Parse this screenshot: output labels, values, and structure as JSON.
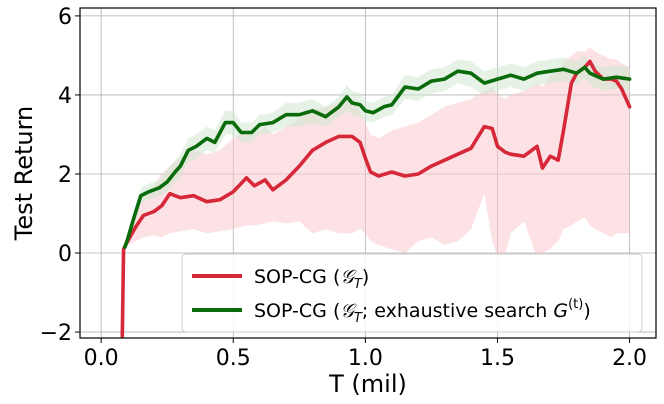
{
  "chart_data": {
    "type": "line",
    "xlabel": "T (mil)",
    "ylabel": "Test Return",
    "xlim": [
      -0.08,
      2.1
    ],
    "ylim": [
      -2.15,
      6.2
    ],
    "xticks": [
      0.0,
      0.5,
      1.0,
      1.5,
      2.0
    ],
    "xtick_labels": [
      "0.0",
      "0.5",
      "1.0",
      "1.5",
      "2.0"
    ],
    "yticks": [
      -2,
      0,
      2,
      4,
      6
    ],
    "ytick_labels": [
      "−2",
      "0",
      "2",
      "4",
      "6"
    ],
    "grid": true,
    "legend_position": "bottom-right",
    "series": [
      {
        "name": "SOP-CG (𝒢ᵀ)",
        "legend_parts": {
          "prefix": "SOP-CG (",
          "calG": "𝒢",
          "sub": "T",
          "suffix": ")"
        },
        "color": "#d62839",
        "band_color": "#f9c6cb",
        "x": [
          0.08,
          0.085,
          0.1,
          0.13,
          0.16,
          0.2,
          0.23,
          0.26,
          0.3,
          0.35,
          0.4,
          0.45,
          0.5,
          0.55,
          0.58,
          0.62,
          0.65,
          0.7,
          0.75,
          0.8,
          0.85,
          0.9,
          0.95,
          0.98,
          1.0,
          1.02,
          1.05,
          1.1,
          1.15,
          1.2,
          1.25,
          1.3,
          1.35,
          1.4,
          1.45,
          1.48,
          1.5,
          1.53,
          1.55,
          1.6,
          1.65,
          1.67,
          1.7,
          1.73,
          1.75,
          1.78,
          1.8,
          1.83,
          1.85,
          1.87,
          1.9,
          1.93,
          1.95,
          1.97,
          2.0
        ],
        "y": [
          -2.1,
          0.1,
          0.3,
          0.65,
          0.95,
          1.05,
          1.2,
          1.5,
          1.4,
          1.45,
          1.3,
          1.35,
          1.55,
          1.9,
          1.7,
          1.85,
          1.6,
          1.85,
          2.2,
          2.6,
          2.8,
          2.95,
          2.95,
          2.8,
          2.4,
          2.05,
          1.95,
          2.05,
          1.95,
          2.0,
          2.2,
          2.35,
          2.5,
          2.65,
          3.2,
          3.15,
          2.7,
          2.55,
          2.5,
          2.45,
          2.7,
          2.15,
          2.45,
          2.35,
          3.1,
          4.3,
          4.55,
          4.7,
          4.85,
          4.6,
          4.4,
          4.4,
          4.35,
          4.15,
          3.7
        ],
        "band_low": [
          -2.1,
          0.0,
          0.2,
          0.3,
          0.4,
          0.45,
          0.4,
          0.5,
          0.55,
          0.6,
          0.5,
          0.55,
          0.6,
          0.7,
          0.7,
          0.75,
          0.8,
          0.75,
          0.8,
          0.5,
          0.6,
          0.5,
          0.5,
          0.6,
          0.5,
          0.3,
          0.2,
          0.1,
          0.0,
          0.3,
          0.4,
          0.2,
          0.3,
          0.6,
          1.5,
          0.3,
          -0.1,
          0.0,
          0.5,
          0.8,
          -0.1,
          0.0,
          0.1,
          0.3,
          0.6,
          0.7,
          0.8,
          0.9,
          0.7,
          0.6,
          0.5,
          0.4,
          0.5,
          0.5,
          0.5
        ],
        "band_high": [
          -2.1,
          0.2,
          0.5,
          1.0,
          1.4,
          1.7,
          2.0,
          2.2,
          2.4,
          2.6,
          2.5,
          2.6,
          2.9,
          3.1,
          3.0,
          3.2,
          3.0,
          3.2,
          3.4,
          3.6,
          3.7,
          3.8,
          3.9,
          3.6,
          3.3,
          3.0,
          2.9,
          3.1,
          3.2,
          3.3,
          3.5,
          3.7,
          3.8,
          3.9,
          4.1,
          4.2,
          4.0,
          3.9,
          4.0,
          4.1,
          4.3,
          4.2,
          4.5,
          4.6,
          4.8,
          5.0,
          5.1,
          5.1,
          5.2,
          5.1,
          5.0,
          4.9,
          4.9,
          4.8,
          4.7
        ]
      },
      {
        "name": "SOP-CG (𝒢ᵀ; exhaustive search G⁽ᵗ⁾)",
        "legend_parts": {
          "prefix": "SOP-CG (",
          "calG": "𝒢",
          "sub": "T",
          "mid": "; exhaustive search ",
          "G": "G",
          "sup": "(t)",
          "suffix": ")"
        },
        "color": "#0a6b0a",
        "band_color": "#cfe8cf",
        "x": [
          0.09,
          0.1,
          0.12,
          0.15,
          0.18,
          0.2,
          0.22,
          0.25,
          0.28,
          0.3,
          0.33,
          0.36,
          0.4,
          0.43,
          0.47,
          0.5,
          0.53,
          0.57,
          0.6,
          0.65,
          0.7,
          0.75,
          0.8,
          0.85,
          0.9,
          0.93,
          0.95,
          0.98,
          1.0,
          1.03,
          1.07,
          1.1,
          1.15,
          1.2,
          1.25,
          1.3,
          1.35,
          1.4,
          1.45,
          1.5,
          1.55,
          1.6,
          1.65,
          1.7,
          1.75,
          1.8,
          1.83,
          1.85,
          1.9,
          1.95,
          2.0
        ],
        "y": [
          0.15,
          0.35,
          0.8,
          1.45,
          1.55,
          1.6,
          1.65,
          1.8,
          2.05,
          2.2,
          2.6,
          2.7,
          2.9,
          2.8,
          3.3,
          3.3,
          3.05,
          3.05,
          3.25,
          3.3,
          3.5,
          3.5,
          3.6,
          3.45,
          3.7,
          3.95,
          3.8,
          3.75,
          3.6,
          3.55,
          3.7,
          3.75,
          4.2,
          4.15,
          4.35,
          4.4,
          4.6,
          4.55,
          4.3,
          4.4,
          4.5,
          4.4,
          4.55,
          4.6,
          4.65,
          4.55,
          4.7,
          4.55,
          4.4,
          4.45,
          4.4
        ],
        "band_low": [
          0.1,
          0.25,
          0.6,
          1.25,
          1.35,
          1.4,
          1.45,
          1.55,
          1.8,
          1.9,
          2.3,
          2.4,
          2.6,
          2.55,
          3.0,
          3.0,
          2.8,
          2.8,
          3.0,
          3.05,
          3.2,
          3.2,
          3.3,
          3.2,
          3.45,
          3.6,
          3.5,
          3.45,
          3.35,
          3.3,
          3.45,
          3.5,
          3.9,
          3.85,
          4.05,
          4.1,
          4.3,
          4.2,
          4.0,
          4.1,
          4.2,
          4.1,
          4.25,
          4.3,
          4.35,
          4.25,
          4.4,
          4.25,
          4.1,
          4.15,
          4.1
        ],
        "band_high": [
          0.2,
          0.45,
          1.0,
          1.65,
          1.75,
          1.8,
          1.85,
          2.1,
          2.35,
          2.5,
          2.9,
          3.0,
          3.2,
          3.1,
          3.6,
          3.6,
          3.3,
          3.3,
          3.5,
          3.55,
          3.8,
          3.8,
          3.9,
          3.7,
          3.95,
          4.25,
          4.1,
          4.05,
          3.85,
          3.8,
          3.95,
          4.0,
          4.5,
          4.45,
          4.65,
          4.7,
          4.9,
          4.85,
          4.6,
          4.7,
          4.8,
          4.7,
          4.85,
          4.9,
          4.95,
          4.85,
          5.0,
          4.85,
          4.7,
          4.75,
          4.7
        ]
      }
    ]
  }
}
